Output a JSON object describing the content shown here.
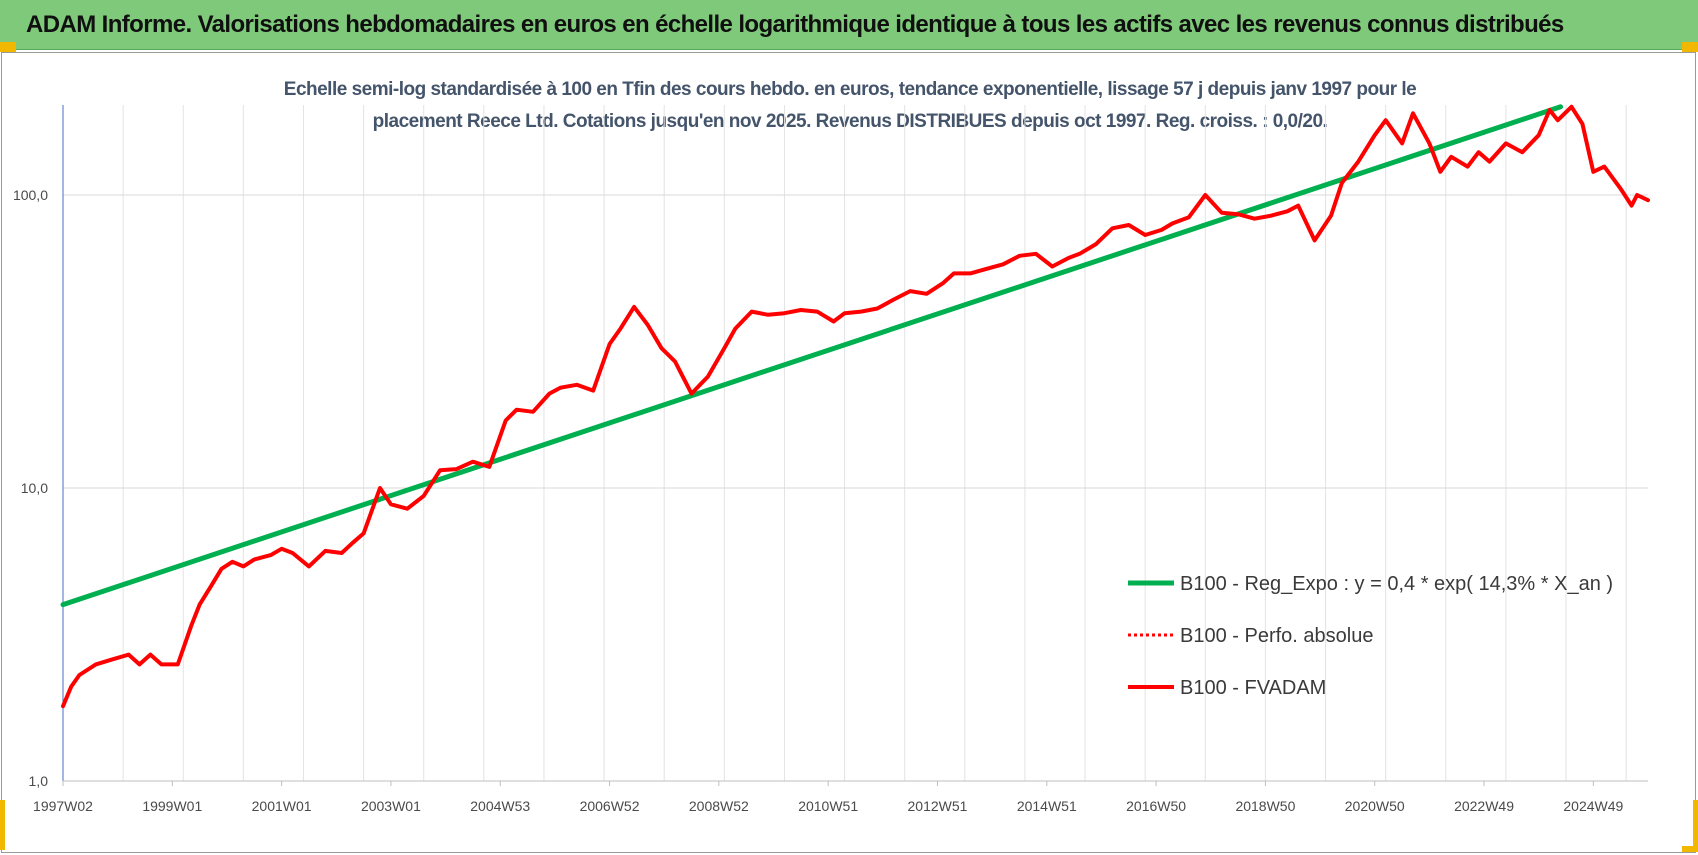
{
  "banner": {
    "title": "ADAM Informe. Valorisations hebdomadaires en euros en échelle logarithmique identique à tous les actifs avec les revenus connus distribués"
  },
  "colors": {
    "banner_bg": "#7fc97a",
    "corner_marks": "#f2b800",
    "regression": "#00b050",
    "fvadam": "#ff0000",
    "perfo": "#ff0000",
    "subtitle_text": "#44546a"
  },
  "chart_data": {
    "type": "line",
    "subtitle_line1": "Echelle semi-log standardisée à 100 en Tfin des cours hebdo. en euros, tendance exponentielle, lissage 57 j depuis janv 1997 pour le",
    "subtitle_line2": "placement Reece Ltd. Cotations jusqu'en nov 2025. Revenus DISTRIBUES depuis oct 1997. Reg. croiss. : 0,0/20.",
    "y_scale": "log",
    "ylim": [
      1,
      200
    ],
    "xlim": [
      1997.0,
      2026.0
    ],
    "grid": true,
    "legend_position": "lower-right",
    "y_ticks": [
      {
        "value": 1,
        "label": "1,0"
      },
      {
        "value": 10,
        "label": "10,0"
      },
      {
        "value": 100,
        "label": "100,0"
      }
    ],
    "x_ticks": [
      {
        "value": 1997.0,
        "label": "1997W02"
      },
      {
        "value": 1999.0,
        "label": "1999W01"
      },
      {
        "value": 2001.0,
        "label": "2001W01"
      },
      {
        "value": 2003.0,
        "label": "2003W01"
      },
      {
        "value": 2005.0,
        "label": "2004W53"
      },
      {
        "value": 2007.0,
        "label": "2006W52"
      },
      {
        "value": 2009.0,
        "label": "2008W52"
      },
      {
        "value": 2011.0,
        "label": "2010W51"
      },
      {
        "value": 2013.0,
        "label": "2012W51"
      },
      {
        "value": 2015.0,
        "label": "2014W51"
      },
      {
        "value": 2017.0,
        "label": "2016W50"
      },
      {
        "value": 2019.0,
        "label": "2018W50"
      },
      {
        "value": 2021.0,
        "label": "2020W50"
      },
      {
        "value": 2023.0,
        "label": "2022W49"
      },
      {
        "value": 2025.0,
        "label": "2024W49"
      }
    ],
    "series": [
      {
        "name": "B100 - Reg_Expo : y = 0,4 * exp( 14,3% *  X_an )",
        "style": "solid-green",
        "x": [
          1997.0,
          2024.4
        ],
        "y": [
          4.0,
          200
        ]
      },
      {
        "name": "B100 - Perfo. absolue",
        "style": "dotted-red",
        "x": [],
        "y": []
      },
      {
        "name": "B100 - FVADAM",
        "style": "solid-red",
        "x": [
          1997.0,
          1997.15,
          1997.3,
          1997.6,
          1997.9,
          1998.2,
          1998.4,
          1998.6,
          1998.8,
          1999.1,
          1999.35,
          1999.5,
          1999.7,
          1999.9,
          2000.1,
          2000.3,
          2000.5,
          2000.8,
          2001.0,
          2001.2,
          2001.5,
          2001.8,
          2002.1,
          2002.3,
          2002.5,
          2002.8,
          2003.0,
          2003.3,
          2003.6,
          2003.9,
          2004.2,
          2004.5,
          2004.8,
          2005.1,
          2005.3,
          2005.6,
          2005.9,
          2006.1,
          2006.4,
          2006.7,
          2007.0,
          2007.2,
          2007.45,
          2007.7,
          2007.95,
          2008.2,
          2008.5,
          2008.8,
          2009.1,
          2009.3,
          2009.6,
          2009.9,
          2010.2,
          2010.5,
          2010.8,
          2011.1,
          2011.3,
          2011.6,
          2011.9,
          2012.2,
          2012.5,
          2012.8,
          2013.1,
          2013.3,
          2013.6,
          2013.9,
          2014.2,
          2014.5,
          2014.8,
          2015.1,
          2015.4,
          2015.6,
          2015.9,
          2016.2,
          2016.5,
          2016.8,
          2017.1,
          2017.3,
          2017.6,
          2017.9,
          2018.2,
          2018.5,
          2018.8,
          2019.1,
          2019.4,
          2019.6,
          2019.9,
          2020.2,
          2020.4,
          2020.7,
          2021.0,
          2021.2,
          2021.5,
          2021.7,
          2022.0,
          2022.2,
          2022.4,
          2022.7,
          2022.9,
          2023.1,
          2023.4,
          2023.7,
          2024.0,
          2024.2,
          2024.35,
          2024.6,
          2024.8,
          2025.0,
          2025.2,
          2025.5,
          2025.7,
          2025.8,
          2026.0
        ],
        "y": [
          1.8,
          2.1,
          2.3,
          2.5,
          2.6,
          2.7,
          2.5,
          2.7,
          2.5,
          2.5,
          3.4,
          4.0,
          4.6,
          5.3,
          5.6,
          5.4,
          5.7,
          5.9,
          6.2,
          6.0,
          5.4,
          6.1,
          6.0,
          6.5,
          7.0,
          10.0,
          8.8,
          8.5,
          9.4,
          11.5,
          11.6,
          12.3,
          11.8,
          17.0,
          18.5,
          18.2,
          21.0,
          22.0,
          22.5,
          21.5,
          31.0,
          35.0,
          41.5,
          36.0,
          30.0,
          27.0,
          21.0,
          24.0,
          30.0,
          35.0,
          40.0,
          39.0,
          39.5,
          40.5,
          40.0,
          37.0,
          39.5,
          40.0,
          41.0,
          44.0,
          47.0,
          46.0,
          50.0,
          54.0,
          54.0,
          56.0,
          58.0,
          62.0,
          63.0,
          57.0,
          61.0,
          63.0,
          68.0,
          77.0,
          79.0,
          73.0,
          76.0,
          80.0,
          84.0,
          100.0,
          87.0,
          86.0,
          83.0,
          85.0,
          88.0,
          92.0,
          70.0,
          85.0,
          110.0,
          130.0,
          160.0,
          180.0,
          150.0,
          190.0,
          150.0,
          120.0,
          135.0,
          125.0,
          140.0,
          130.0,
          150.0,
          140.0,
          160.0,
          195.0,
          180.0,
          200.0,
          175.0,
          120.0,
          125.0,
          105.0,
          92.0,
          100.0,
          96.0
        ]
      }
    ]
  }
}
